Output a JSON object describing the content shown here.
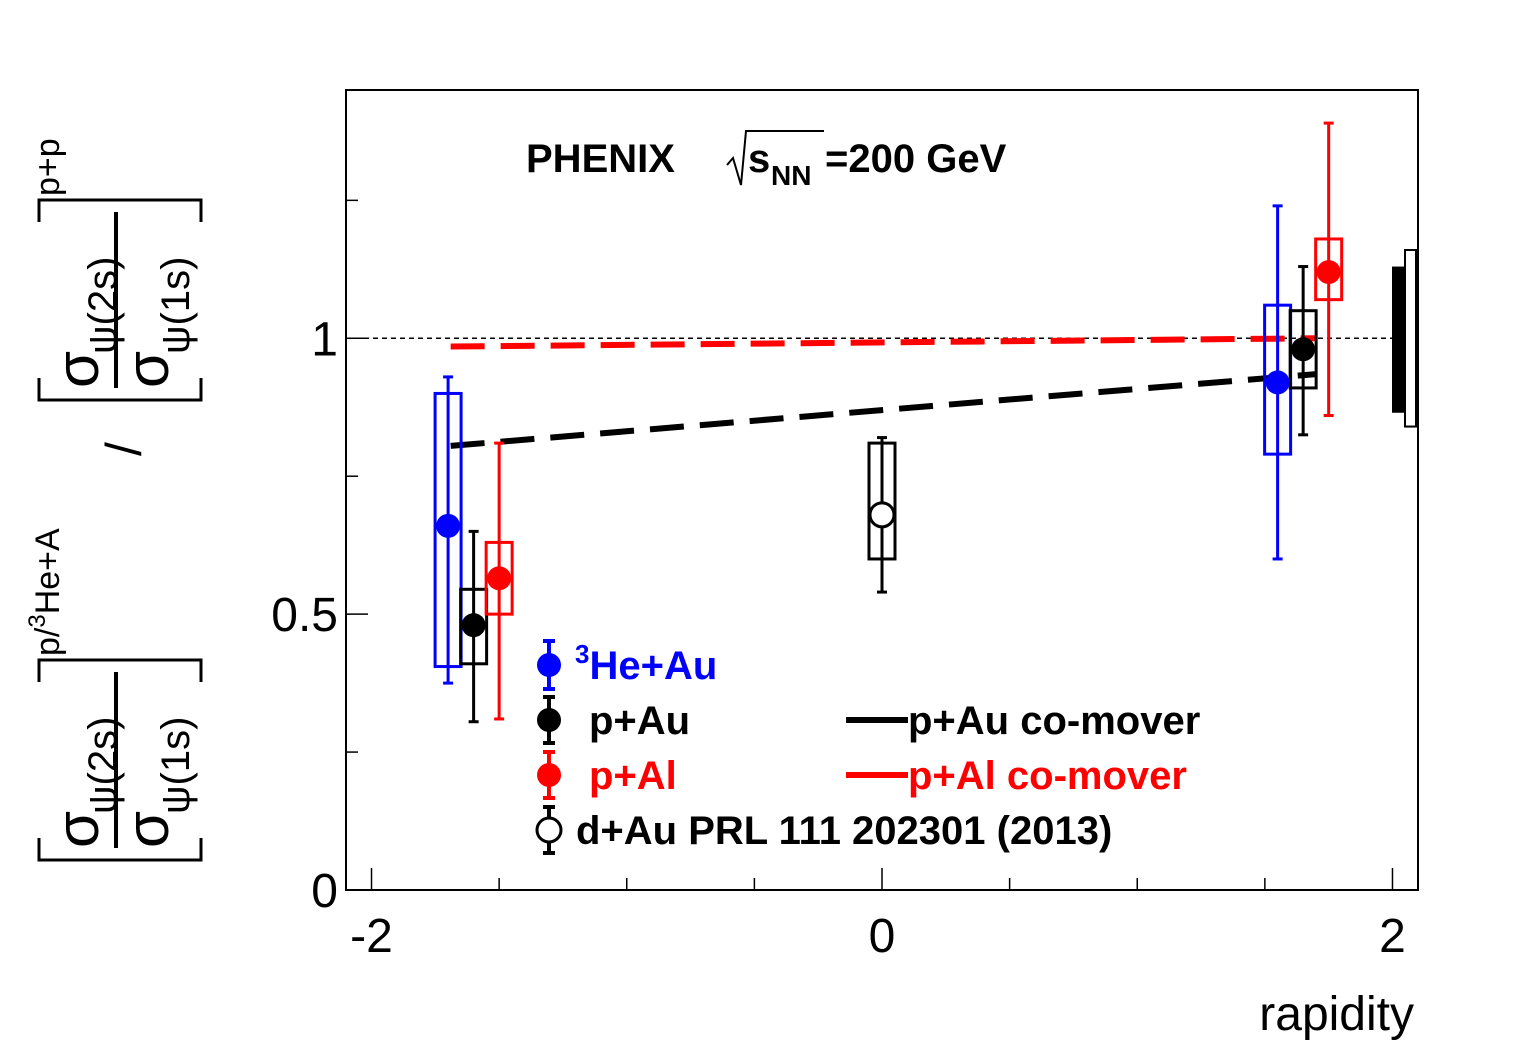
{
  "chart_data": {
    "type": "scatter",
    "title_prefix": "PHENIX ",
    "title_s": "s",
    "title_sub": "NN",
    "title_suffix": "=200 GeV",
    "xlabel": "rapidity",
    "xlim": [
      -2.1,
      2.1
    ],
    "ylim": [
      0,
      1.45
    ],
    "x_ticks": [
      -2,
      0,
      2
    ],
    "y_ticks": [
      0,
      0.5,
      1
    ],
    "x_tick_labels": [
      "-2",
      "0",
      "2"
    ],
    "y_tick_labels": [
      "0",
      "0.5",
      "1"
    ],
    "ylabel": {
      "sigma": "σ",
      "num_sub": "ψ(2s)",
      "den_sub": "ψ(1s)",
      "lower_sup_prefix": "p/",
      "lower_sup_iso": "3",
      "lower_sup_suffix": "He+A",
      "upper_sup": "p+p",
      "divide": "/"
    },
    "reference_line_y": 1.0,
    "global_uncertainty": [
      {
        "center": 1.0,
        "low": 0.865,
        "high": 1.13,
        "style": "filled"
      },
      {
        "center": 1.0,
        "low": 0.84,
        "high": 1.16,
        "style": "open"
      }
    ],
    "series": [
      {
        "name": "³He+Au",
        "legend_iso": "3",
        "legend_text": "He+Au",
        "color": "#0000ff",
        "marker": "filled-circle",
        "points": [
          {
            "x": -1.7,
            "y": 0.66,
            "stat_low": 0.375,
            "stat_high": 0.93,
            "sys_low": 0.405,
            "sys_high": 0.9
          },
          {
            "x": 1.55,
            "y": 0.92,
            "stat_low": 0.6,
            "stat_high": 1.24,
            "sys_low": 0.79,
            "sys_high": 1.06
          }
        ]
      },
      {
        "name": "p+Au",
        "color": "#000000",
        "marker": "filled-circle",
        "points": [
          {
            "x": -1.6,
            "y": 0.48,
            "stat_low": 0.305,
            "stat_high": 0.65,
            "sys_low": 0.41,
            "sys_high": 0.545
          },
          {
            "x": 1.65,
            "y": 0.98,
            "stat_low": 0.825,
            "stat_high": 1.13,
            "sys_low": 0.91,
            "sys_high": 1.05
          }
        ]
      },
      {
        "name": "p+Al",
        "color": "#ff0000",
        "marker": "filled-circle",
        "points": [
          {
            "x": -1.5,
            "y": 0.565,
            "stat_low": 0.31,
            "stat_high": 0.81,
            "sys_low": 0.5,
            "sys_high": 0.63
          },
          {
            "x": 1.75,
            "y": 1.12,
            "stat_low": 0.86,
            "stat_high": 1.39,
            "sys_low": 1.07,
            "sys_high": 1.18
          }
        ]
      },
      {
        "name": "d+Au PRL 111 202301 (2013)",
        "color": "#000000",
        "marker": "open-circle",
        "points": [
          {
            "x": 0.0,
            "y": 0.68,
            "stat_low": 0.54,
            "stat_high": 0.82,
            "sys_low": 0.6,
            "sys_high": 0.81
          }
        ]
      }
    ],
    "curves": [
      {
        "name": "p+Au co-mover",
        "color": "#000000",
        "style": "dashed",
        "x": [
          -1.69,
          1.7
        ],
        "y": [
          0.805,
          0.935
        ]
      },
      {
        "name": "p+Al co-mover",
        "color": "#ff0000",
        "style": "dashed",
        "x": [
          -1.69,
          1.7
        ],
        "y": [
          0.985,
          1.0
        ]
      }
    ],
    "legend_position": "bottom-center"
  }
}
